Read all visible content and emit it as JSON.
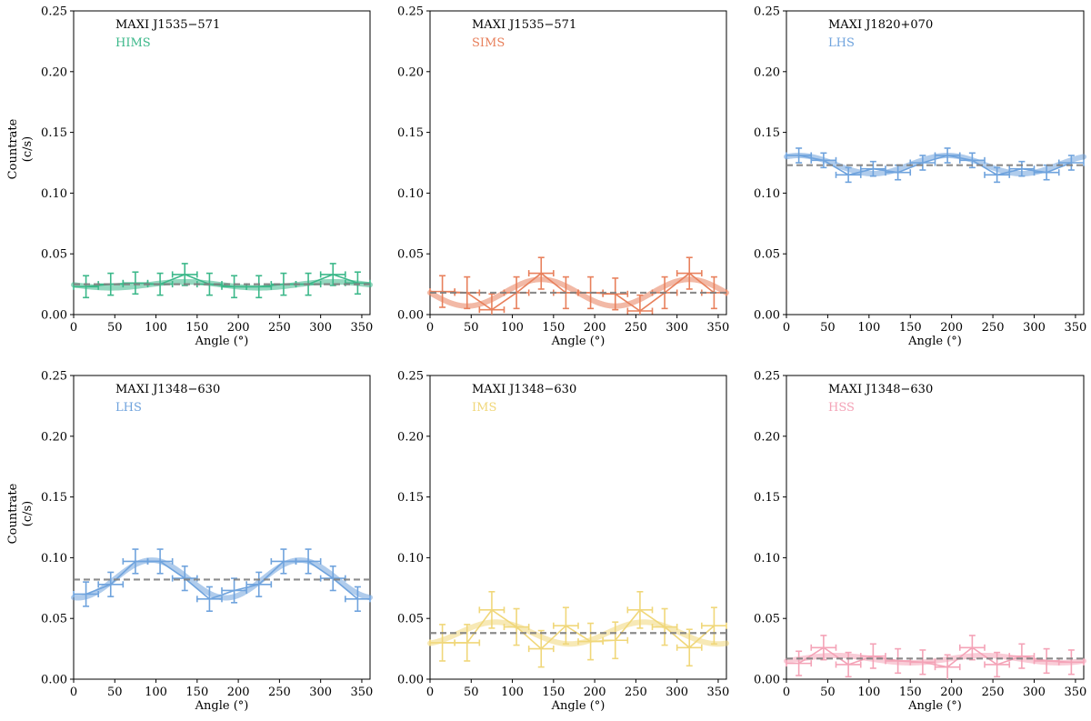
{
  "figure": {
    "xlabel": "Angle (°)",
    "ylabel_line1": "Countrate",
    "ylabel_line2": "(c/s)"
  },
  "chart_data": [
    {
      "type": "scatter",
      "source": "MAXI J1535−571",
      "state": "HIMS",
      "color": "#3cb88a",
      "xlabel": "Angle (°)",
      "ylabel": "Countrate (c/s)",
      "xlim": [
        0,
        360
      ],
      "ylim": [
        0,
        0.25
      ],
      "xticks": [
        0,
        50,
        100,
        150,
        200,
        250,
        300,
        350
      ],
      "yticks": [
        0.0,
        0.05,
        0.1,
        0.15,
        0.2,
        0.25
      ],
      "x": [
        15,
        45,
        75,
        105,
        135,
        165,
        195,
        225,
        255,
        285,
        315,
        345
      ],
      "y": [
        0.023,
        0.025,
        0.026,
        0.025,
        0.033,
        0.025,
        0.023,
        0.023,
        0.025,
        0.025,
        0.033,
        0.026
      ],
      "yerr": 0.009,
      "xerr": 15,
      "constant": 0.025,
      "fit": {
        "mean": 0.0245,
        "amp": 0.0025,
        "phase_deg": 135
      }
    },
    {
      "type": "scatter",
      "source": "MAXI J1535−571",
      "state": "SIMS",
      "color": "#e8805c",
      "xlabel": "Angle (°)",
      "ylabel": "Countrate (c/s)",
      "xlim": [
        0,
        360
      ],
      "ylim": [
        0,
        0.25
      ],
      "xticks": [
        0,
        50,
        100,
        150,
        200,
        250,
        300,
        350
      ],
      "yticks": [
        0.0,
        0.05,
        0.1,
        0.15,
        0.2,
        0.25
      ],
      "x": [
        15,
        45,
        75,
        105,
        135,
        165,
        195,
        225,
        255,
        285,
        315,
        345
      ],
      "y": [
        0.019,
        0.018,
        0.004,
        0.018,
        0.034,
        0.018,
        0.018,
        0.017,
        0.003,
        0.018,
        0.034,
        0.018
      ],
      "yerr": 0.013,
      "xerr": 15,
      "constant": 0.018,
      "fit": {
        "mean": 0.018,
        "amp": 0.011,
        "phase_deg": 135
      }
    },
    {
      "type": "scatter",
      "source": "MAXI J1820+070",
      "state": "LHS",
      "color": "#6fa3dd",
      "xlabel": "Angle (°)",
      "ylabel": "Countrate (c/s)",
      "xlim": [
        0,
        360
      ],
      "ylim": [
        0,
        0.25
      ],
      "xticks": [
        0,
        50,
        100,
        150,
        200,
        250,
        300,
        350
      ],
      "yticks": [
        0.0,
        0.05,
        0.1,
        0.15,
        0.2,
        0.25
      ],
      "x": [
        15,
        45,
        75,
        105,
        135,
        165,
        195,
        225,
        255,
        285,
        315,
        345
      ],
      "y": [
        0.131,
        0.127,
        0.115,
        0.12,
        0.117,
        0.125,
        0.131,
        0.127,
        0.115,
        0.12,
        0.117,
        0.125
      ],
      "yerr": 0.006,
      "xerr": 15,
      "constant": 0.123,
      "fit": {
        "mean": 0.1235,
        "amp": 0.0075,
        "phase_deg": 15
      }
    },
    {
      "type": "scatter",
      "source": "MAXI J1348−630",
      "state": "LHS",
      "color": "#6fa3dd",
      "xlabel": "Angle (°)",
      "ylabel": "Countrate (c/s)",
      "xlim": [
        0,
        360
      ],
      "ylim": [
        0,
        0.25
      ],
      "xticks": [
        0,
        50,
        100,
        150,
        200,
        250,
        300,
        350
      ],
      "yticks": [
        0.0,
        0.05,
        0.1,
        0.15,
        0.2,
        0.25
      ],
      "x": [
        15,
        45,
        75,
        105,
        135,
        165,
        195,
        225,
        255,
        285,
        315,
        345
      ],
      "y": [
        0.07,
        0.078,
        0.097,
        0.097,
        0.083,
        0.066,
        0.073,
        0.078,
        0.097,
        0.097,
        0.083,
        0.066
      ],
      "yerr": 0.01,
      "xerr": 15,
      "constant": 0.082,
      "fit": {
        "mean": 0.0825,
        "amp": 0.0155,
        "phase_deg": 95
      }
    },
    {
      "type": "scatter",
      "source": "MAXI J1348−630",
      "state": "IMS",
      "color": "#f0d77a",
      "xlabel": "Angle (°)",
      "ylabel": "Countrate (c/s)",
      "xlim": [
        0,
        360
      ],
      "ylim": [
        0,
        0.25
      ],
      "xticks": [
        0,
        50,
        100,
        150,
        200,
        250,
        300,
        350
      ],
      "yticks": [
        0.0,
        0.05,
        0.1,
        0.15,
        0.2,
        0.25
      ],
      "x": [
        15,
        45,
        75,
        105,
        135,
        165,
        195,
        225,
        255,
        285,
        315,
        345
      ],
      "y": [
        0.03,
        0.03,
        0.057,
        0.043,
        0.025,
        0.044,
        0.031,
        0.032,
        0.057,
        0.043,
        0.026,
        0.044
      ],
      "yerr": 0.015,
      "xerr": 15,
      "constant": 0.038,
      "fit": {
        "mean": 0.038,
        "amp": 0.009,
        "phase_deg": 80
      }
    },
    {
      "type": "scatter",
      "source": "MAXI J1348−630",
      "state": "HSS",
      "color": "#f4a3b7",
      "xlabel": "Angle (°)",
      "ylabel": "Countrate (c/s)",
      "xlim": [
        0,
        360
      ],
      "ylim": [
        0,
        0.25
      ],
      "xticks": [
        0,
        50,
        100,
        150,
        200,
        250,
        300,
        350
      ],
      "yticks": [
        0.0,
        0.05,
        0.1,
        0.15,
        0.2,
        0.25
      ],
      "x": [
        15,
        45,
        75,
        105,
        135,
        165,
        195,
        225,
        255,
        285,
        315,
        345
      ],
      "y": [
        0.013,
        0.026,
        0.012,
        0.019,
        0.015,
        0.014,
        0.01,
        0.026,
        0.012,
        0.019,
        0.015,
        0.014
      ],
      "yerr": 0.01,
      "xerr": 15,
      "constant": 0.017,
      "fit": {
        "mean": 0.0165,
        "amp": 0.003,
        "phase_deg": 60
      }
    }
  ]
}
